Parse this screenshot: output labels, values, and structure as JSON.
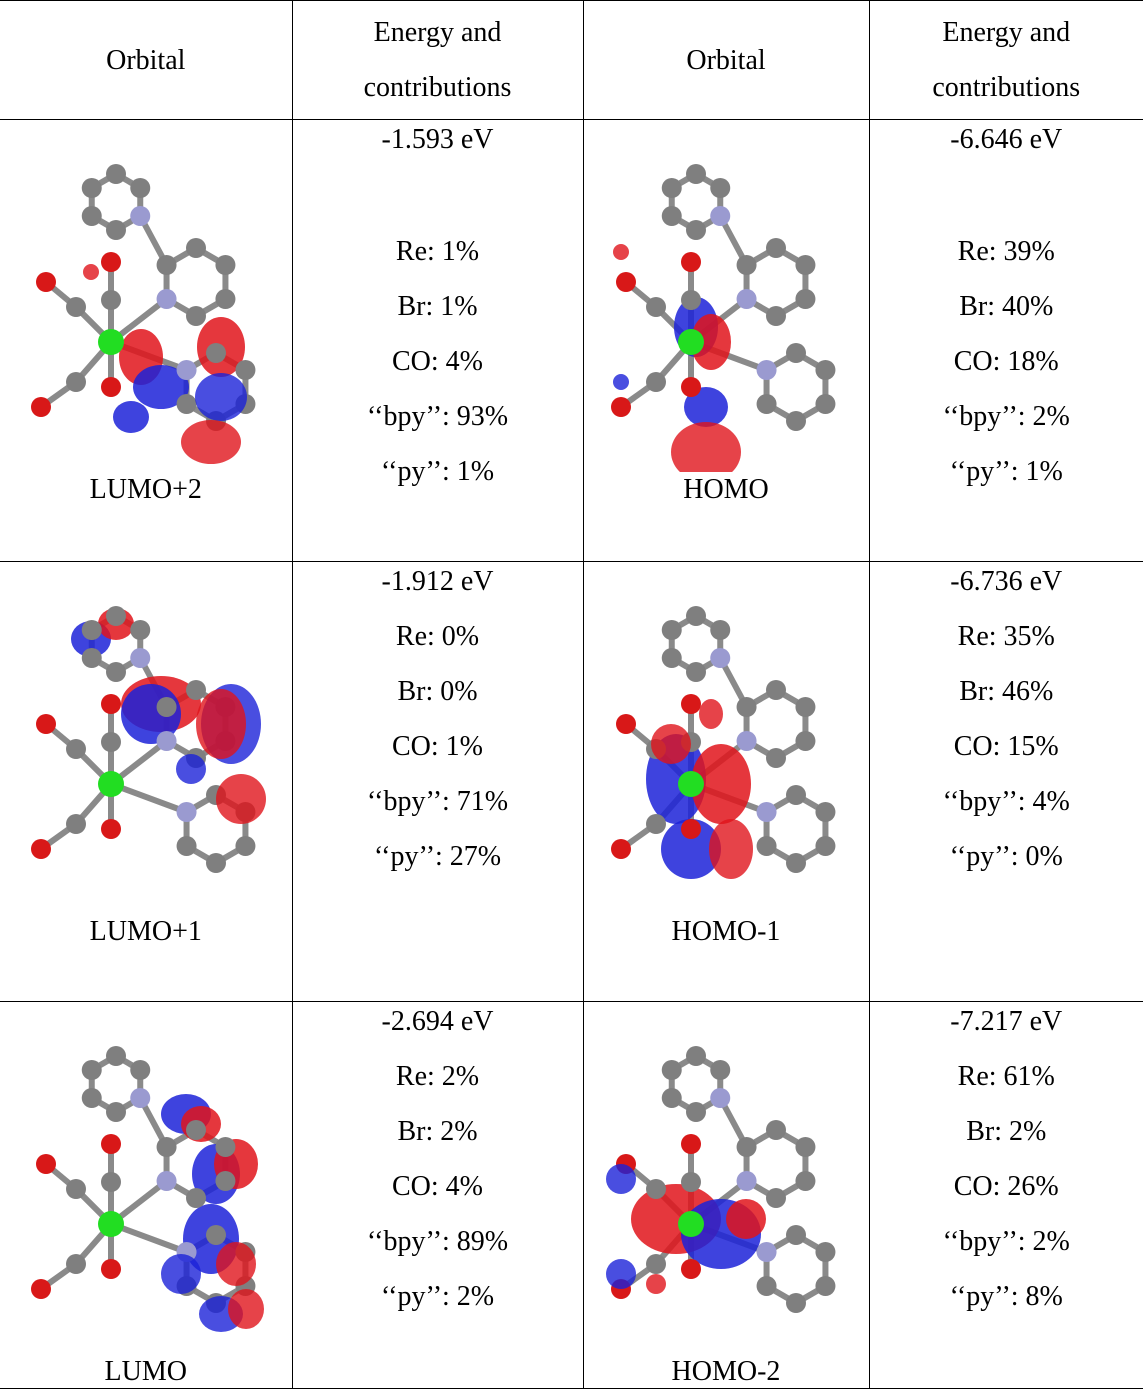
{
  "table": {
    "header": [
      "Orbital",
      "Energy and contributions",
      "Orbital",
      "Energy and contributions"
    ],
    "rows": [
      [
        {
          "orbital": "LUMO+2",
          "energy": "-1.593 eV",
          "contributions": [
            "Re: 1%",
            "Br: 1%",
            "CO: 4%",
            "‘‘bpy’’: 93%",
            "‘‘py’’: 1%"
          ]
        },
        {
          "orbital": "HOMO",
          "energy": "-6.646 eV",
          "contributions": [
            "Re: 39%",
            "Br: 40%",
            "CO: 18%",
            "‘‘bpy’’: 2%",
            "‘‘py’’: 1%"
          ]
        }
      ],
      [
        {
          "orbital": "LUMO+1",
          "energy": "-1.912 eV",
          "contributions": [
            "Re: 0%",
            "Br: 0%",
            "CO: 1%",
            "‘‘bpy’’: 71%",
            "‘‘py’’: 27%"
          ]
        },
        {
          "orbital": "HOMO-1",
          "energy": "-6.736 eV",
          "contributions": [
            "Re: 35%",
            "Br: 46%",
            "CO: 15%",
            "‘‘bpy’’: 4%",
            "‘‘py’’: 0%"
          ]
        }
      ],
      [
        {
          "orbital": "LUMO",
          "energy": "-2.694 eV",
          "contributions": [
            "Re: 2%",
            "Br: 2%",
            "CO: 4%",
            "‘‘bpy’’: 89%",
            "‘‘py’’: 2%"
          ]
        },
        {
          "orbital": "HOMO-2",
          "energy": "-7.217 eV",
          "contributions": [
            "Re: 61%",
            "Br: 2%",
            "CO: 26%",
            "‘‘bpy’’: 2%",
            "‘‘py’’: 8%"
          ]
        }
      ]
    ]
  }
}
